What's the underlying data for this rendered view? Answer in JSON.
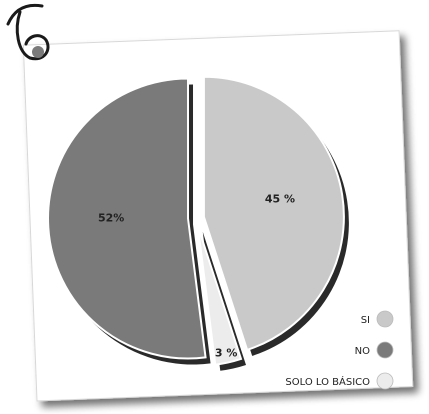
{
  "corner_mark": "6",
  "chart_data": {
    "type": "pie",
    "title": "",
    "slices": [
      {
        "label": "SI",
        "value": 45,
        "value_label": "45 %",
        "color": "#c9c9c9"
      },
      {
        "label": "SOLO LO BÁSICO",
        "value": 3,
        "value_label": "3 %",
        "color": "#ececec"
      },
      {
        "label": "NO",
        "value": 52,
        "value_label": "52%",
        "color": "#7a7a7a"
      }
    ],
    "legend_position": "bottom-right",
    "slice_outline": "#ffffff",
    "shadow_color": "#2a2a2a"
  }
}
